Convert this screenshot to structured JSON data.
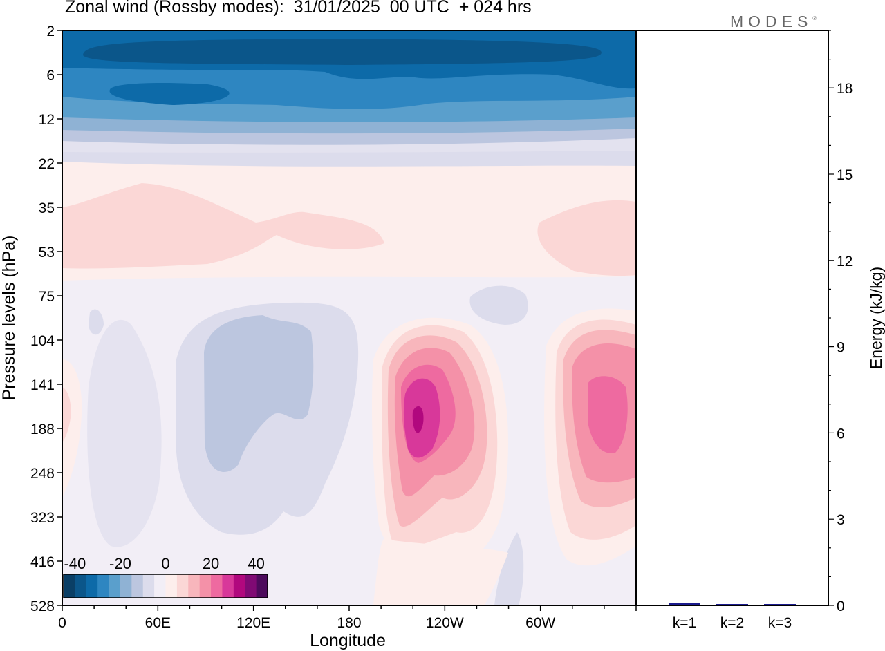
{
  "header": {
    "title": "Zonal wind (Rossby modes):  31/01/2025  00 UTC  + 024 hrs",
    "logo": "MODES"
  },
  "colors": {
    "scale": [
      "#0a3f66",
      "#0b568a",
      "#0d6aa8",
      "#2e86c1",
      "#5a9fcc",
      "#8fb2d4",
      "#bcc6df",
      "#dcdcec",
      "#f2eef6",
      "#fdeeec",
      "#fbd7d6",
      "#f8b6bc",
      "#f491a8",
      "#ee6aa0",
      "#d8389a",
      "#b1087e",
      "#800a74",
      "#4d0a5c"
    ],
    "bar": "#1a1a8c"
  },
  "chart_data": [
    {
      "type": "heatmap",
      "title": "Zonal wind (Rossby modes):  31/01/2025  00 UTC  + 024 hrs",
      "xlabel": "Longitude",
      "ylabel": "Pressure levels (hPa)",
      "x_ticks": [
        "0",
        "60E",
        "120E",
        "180",
        "120W",
        "60W"
      ],
      "y_ticks": [
        "2",
        "6",
        "12",
        "22",
        "35",
        "53",
        "75",
        "104",
        "141",
        "188",
        "248",
        "323",
        "416",
        "528"
      ],
      "colorbar": {
        "ticks": [
          "-40",
          "-20",
          "0",
          "20",
          "40"
        ],
        "range": [
          -45,
          45
        ]
      },
      "features": [
        {
          "lon": 45,
          "level": "2-12",
          "value": -40
        },
        {
          "lon": 218,
          "level": "141-188",
          "value": 38
        },
        {
          "lon": 307,
          "level": "141-188",
          "value": 22
        },
        {
          "lon": 100,
          "level": "104-248",
          "value": -10
        },
        {
          "lon": 160,
          "level": "35-53",
          "value": 6
        }
      ]
    },
    {
      "type": "bar",
      "categories": [
        "k=1",
        "k=2",
        "k=3"
      ],
      "values": [
        0.08,
        0.04,
        0.02
      ],
      "ylabel": "Energy (kJ/kg)",
      "ylim": [
        0,
        20
      ],
      "y_ticks": [
        0,
        3,
        6,
        9,
        12,
        15,
        18
      ]
    }
  ]
}
